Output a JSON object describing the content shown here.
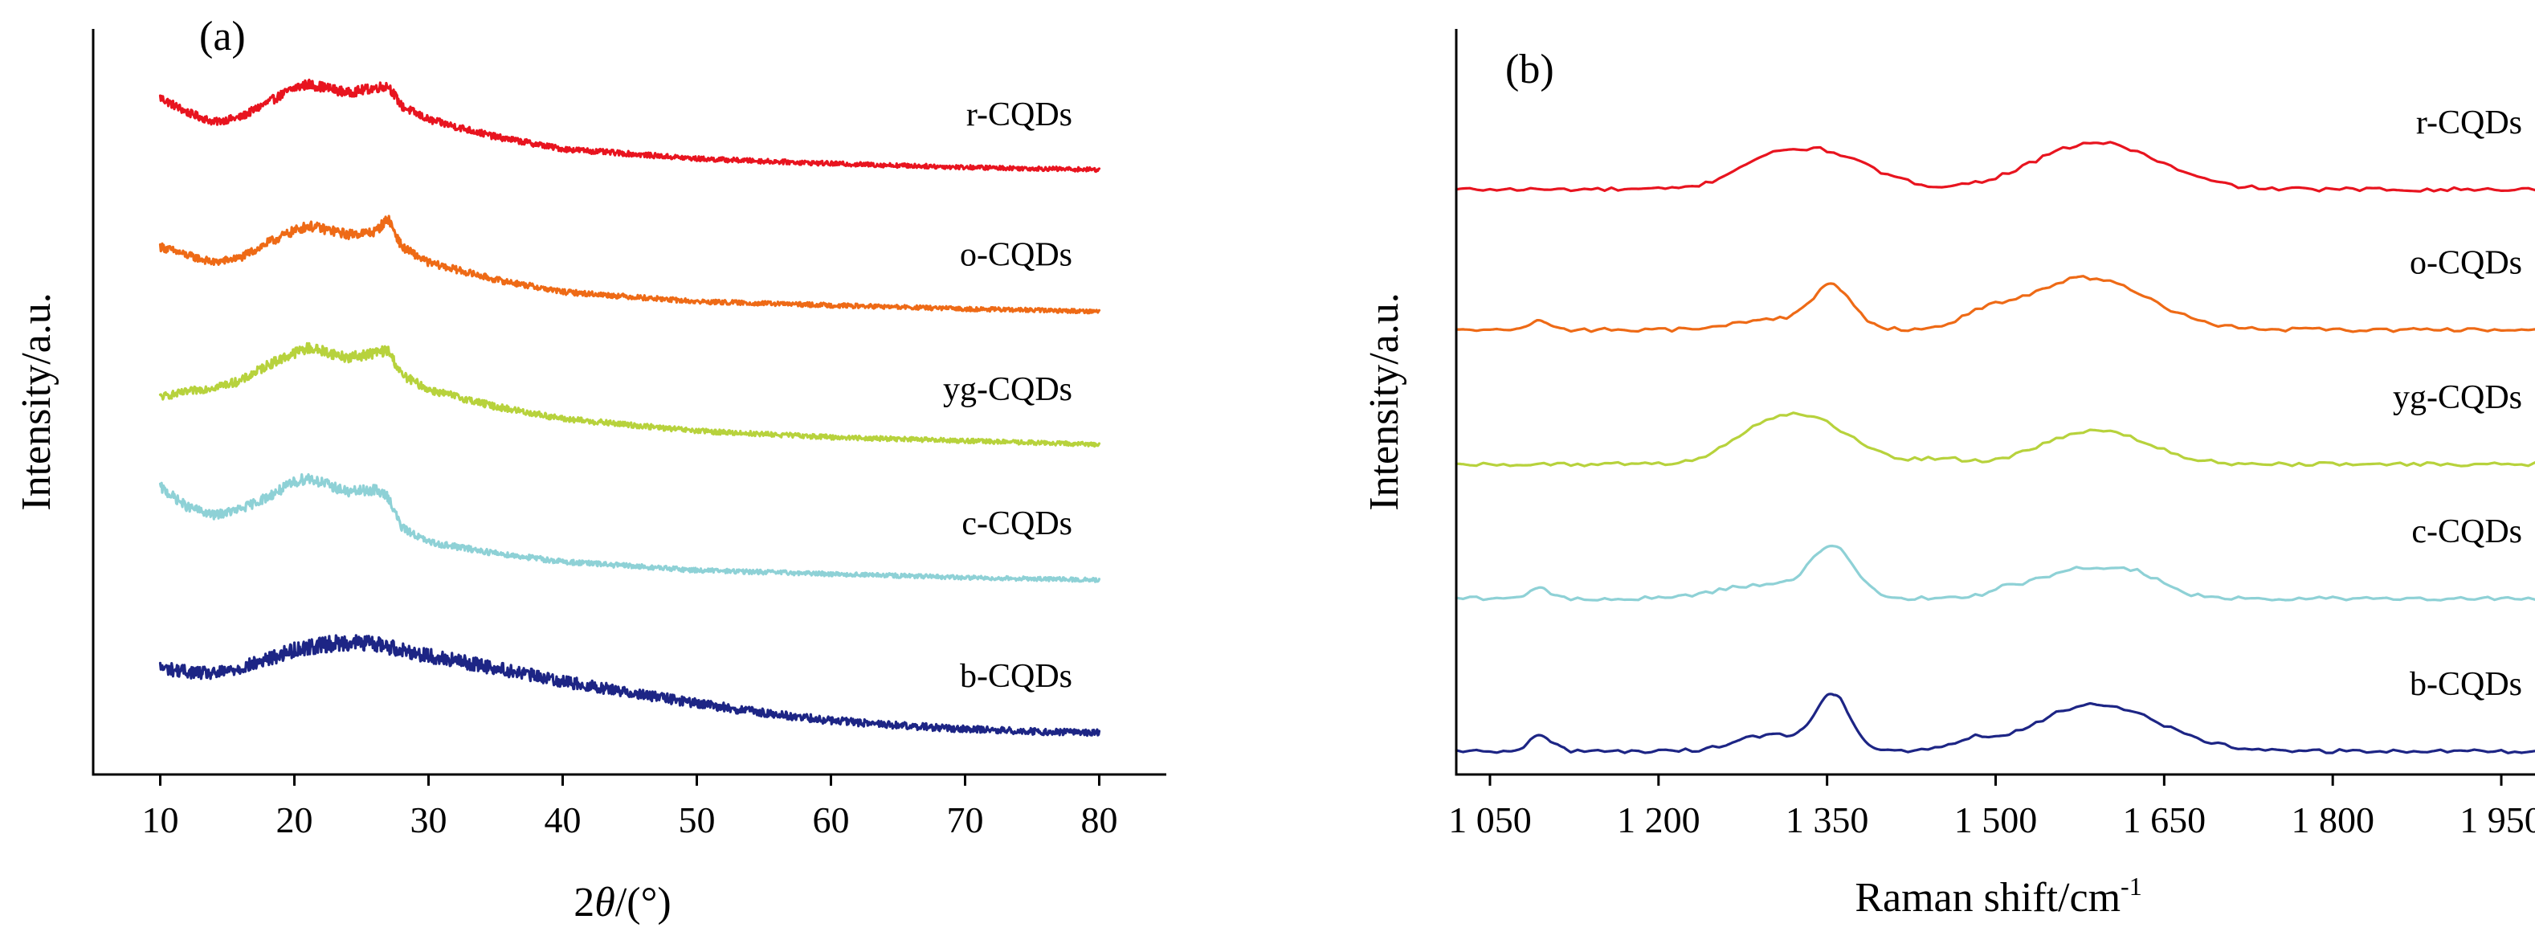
{
  "chart_data": [
    {
      "type": "line",
      "panel_label": "(a)",
      "xlabel_prefix": "2",
      "xlabel_symbol": "θ",
      "xlabel_suffix": "/(°)",
      "ylabel": "Intensity/a.u.",
      "xlim": [
        5,
        85
      ],
      "xticks": [
        10,
        20,
        30,
        40,
        50,
        60,
        70,
        80
      ],
      "xtick_labels": [
        "10",
        "20",
        "30",
        "40",
        "50",
        "60",
        "70",
        "80"
      ],
      "y_tick_labels_shown": false,
      "grid": false,
      "noise": "high",
      "series": [
        {
          "name": "r-CQDs",
          "color": "#e8141f",
          "offset": 4.6,
          "x": [
            10,
            12,
            14,
            16,
            18,
            20,
            21,
            22,
            24,
            26,
            27,
            28,
            30,
            35,
            40,
            50,
            60,
            70,
            80
          ],
          "y": [
            0.62,
            0.5,
            0.42,
            0.46,
            0.58,
            0.7,
            0.73,
            0.71,
            0.66,
            0.7,
            0.72,
            0.55,
            0.44,
            0.3,
            0.2,
            0.12,
            0.08,
            0.05,
            0.03
          ]
        },
        {
          "name": "o-CQDs",
          "color": "#ee6a16",
          "offset": 3.45,
          "x": [
            10,
            12,
            14,
            16,
            18,
            20,
            21,
            22,
            24,
            26,
            27,
            28,
            30,
            35,
            40,
            50,
            60,
            70,
            80
          ],
          "y": [
            0.55,
            0.48,
            0.42,
            0.46,
            0.58,
            0.68,
            0.72,
            0.7,
            0.65,
            0.67,
            0.78,
            0.55,
            0.42,
            0.28,
            0.18,
            0.1,
            0.07,
            0.04,
            0.02
          ]
        },
        {
          "name": "yg-CQDs",
          "color": "#b7d23c",
          "offset": 2.35,
          "x": [
            10,
            12,
            14,
            16,
            18,
            20,
            21,
            22,
            24,
            26,
            27,
            28,
            30,
            35,
            40,
            50,
            60,
            70,
            80
          ],
          "y": [
            0.42,
            0.46,
            0.5,
            0.55,
            0.68,
            0.78,
            0.82,
            0.8,
            0.74,
            0.78,
            0.8,
            0.6,
            0.48,
            0.34,
            0.24,
            0.14,
            0.09,
            0.06,
            0.03
          ]
        },
        {
          "name": "c-CQDs",
          "color": "#8ed1d6",
          "offset": 1.25,
          "x": [
            10,
            12,
            14,
            16,
            18,
            20,
            21,
            22,
            24,
            26,
            27,
            28,
            30,
            35,
            40,
            50,
            60,
            70,
            80
          ],
          "y": [
            0.78,
            0.62,
            0.55,
            0.6,
            0.7,
            0.82,
            0.86,
            0.82,
            0.74,
            0.76,
            0.7,
            0.45,
            0.33,
            0.24,
            0.17,
            0.1,
            0.07,
            0.04,
            0.02
          ]
        },
        {
          "name": "b-CQDs",
          "color": "#1d2585",
          "offset": 0.0,
          "x": [
            10,
            12,
            14,
            16,
            18,
            20,
            22,
            24,
            26,
            28,
            30,
            35,
            40,
            45,
            50,
            55,
            60,
            65,
            70,
            75,
            80
          ],
          "y": [
            0.55,
            0.52,
            0.5,
            0.55,
            0.62,
            0.7,
            0.74,
            0.76,
            0.75,
            0.7,
            0.65,
            0.55,
            0.44,
            0.35,
            0.26,
            0.18,
            0.12,
            0.08,
            0.05,
            0.03,
            0.02
          ]
        }
      ]
    },
    {
      "type": "line",
      "panel_label": "(b)",
      "xlabel": "Raman shift/cm",
      "xlabel_sup": "-1",
      "ylabel": "Intensity/a.u.",
      "xlim": [
        1020,
        1980
      ],
      "xticks": [
        1050,
        1200,
        1350,
        1500,
        1650,
        1800,
        1950
      ],
      "xtick_labels": [
        "1 050",
        "1 200",
        "1 350",
        "1 500",
        "1 650",
        "1 800",
        "1 950"
      ],
      "y_tick_labels_shown": false,
      "grid": false,
      "noise": "low",
      "series": [
        {
          "name": "r-CQDs",
          "color": "#e8141f",
          "offset": 4.6,
          "peaks": [
            [
              1340,
              0.72,
              45
            ],
            [
              1590,
              0.85,
              55
            ],
            [
              1285,
              0.2,
              25
            ]
          ]
        },
        {
          "name": "o-CQDs",
          "color": "#ee6a16",
          "offset": 3.45,
          "peaks": [
            [
              1095,
              0.18,
              8
            ],
            [
              1355,
              0.78,
              18
            ],
            [
              1300,
              0.2,
              30
            ],
            [
              1490,
              0.18,
              18
            ],
            [
              1580,
              0.95,
              55
            ]
          ]
        },
        {
          "name": "yg-CQDs",
          "color": "#b7d23c",
          "offset": 2.35,
          "peaks": [
            [
              1330,
              0.86,
              40
            ],
            [
              1280,
              0.25,
              25
            ],
            [
              1590,
              0.62,
              45
            ],
            [
              1450,
              0.1,
              20
            ]
          ]
        },
        {
          "name": "c-CQDs",
          "color": "#8ed1d6",
          "offset": 1.25,
          "peaks": [
            [
              1095,
              0.2,
              8
            ],
            [
              1355,
              0.9,
              20
            ],
            [
              1290,
              0.25,
              35
            ],
            [
              1510,
              0.08,
              10
            ],
            [
              1580,
              0.55,
              45
            ],
            [
              1630,
              0.18,
              20
            ]
          ]
        },
        {
          "name": "b-CQDs",
          "color": "#1d2585",
          "offset": 0.0,
          "peaks": [
            [
              1095,
              0.3,
              10
            ],
            [
              1355,
              1.0,
              15
            ],
            [
              1300,
              0.3,
              30
            ],
            [
              1480,
              0.15,
              15
            ],
            [
              1590,
              0.85,
              55
            ]
          ]
        }
      ]
    }
  ]
}
